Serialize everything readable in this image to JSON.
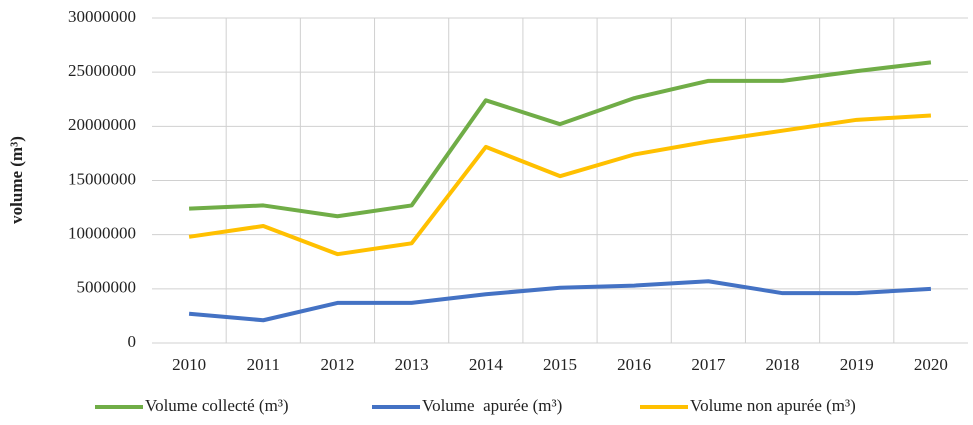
{
  "chart_data": {
    "type": "line",
    "y_label": "volume (m³)",
    "categories": [
      "2010",
      "2011",
      "2012",
      "2013",
      "2014",
      "2015",
      "2016",
      "2017",
      "2018",
      "2019",
      "2020"
    ],
    "series": [
      {
        "name": "Volume collecté (m³)",
        "color": "#70ad47",
        "values": [
          12400000,
          12700000,
          11700000,
          12700000,
          22400000,
          20200000,
          22600000,
          24200000,
          24200000,
          25100000,
          25900000
        ]
      },
      {
        "name": "Volume  apurée (m³)",
        "color": "#4472c4",
        "values": [
          2700000,
          2100000,
          3700000,
          3700000,
          4500000,
          5100000,
          5300000,
          5700000,
          4600000,
          4600000,
          5000000
        ]
      },
      {
        "name": "Volume non apurée (m³)",
        "color": "#ffc000",
        "values": [
          9800000,
          10800000,
          8200000,
          9200000,
          18100000,
          15400000,
          17400000,
          18600000,
          19600000,
          20600000,
          21000000
        ]
      }
    ],
    "ylim": [
      0,
      30000000
    ],
    "yticks": [
      0,
      5000000,
      10000000,
      15000000,
      20000000,
      25000000,
      30000000
    ],
    "grid": true,
    "legend": "bottom"
  }
}
